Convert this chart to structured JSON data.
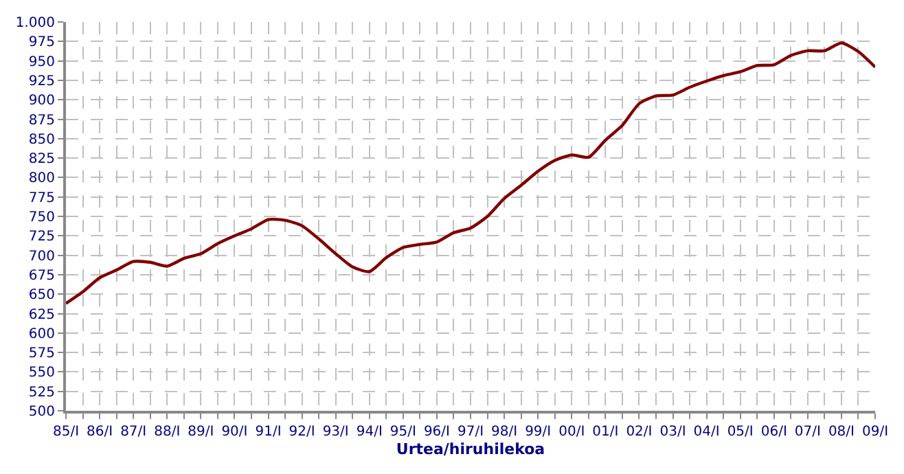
{
  "chart_data": {
    "type": "line",
    "xlabel": "Urtea/hiruhilekoa",
    "categories": [
      "85/I",
      null,
      "86/I",
      null,
      "87/I",
      null,
      "88/I",
      null,
      "89/I",
      null,
      "90/I",
      null,
      "91/I",
      null,
      "92/I",
      null,
      "93/I",
      null,
      "94/I",
      null,
      "95/I",
      null,
      "96/I",
      null,
      "97/I",
      null,
      "98/I",
      null,
      "99/I",
      null,
      "00/I",
      null,
      "01/I",
      null,
      "02/I",
      null,
      "03/I",
      null,
      "04/I",
      null,
      "05/I",
      null,
      "06/I",
      null,
      "07/I",
      null,
      "08/I",
      null,
      "09/I"
    ],
    "series": [
      {
        "color": "#800000",
        "values": [
          638,
          653,
          671,
          681,
          692,
          691,
          686,
          696,
          702,
          715,
          725,
          734,
          746,
          745,
          738,
          721,
          702,
          685,
          679,
          697,
          710,
          714,
          717,
          729,
          735,
          750,
          773,
          790,
          808,
          822,
          829,
          826,
          848,
          867,
          895,
          905,
          906,
          916,
          924,
          931,
          936,
          944,
          945,
          957,
          963,
          963,
          973,
          962,
          942
        ]
      }
    ],
    "ylim": [
      500,
      1000
    ],
    "yticks": [
      500,
      525,
      550,
      575,
      600,
      625,
      650,
      675,
      700,
      725,
      750,
      775,
      800,
      825,
      850,
      875,
      900,
      925,
      950,
      975,
      {
        "value": 1000,
        "label": "1.000"
      }
    ],
    "grid": true,
    "legend": false,
    "marker": "none",
    "line_style": "solid"
  }
}
